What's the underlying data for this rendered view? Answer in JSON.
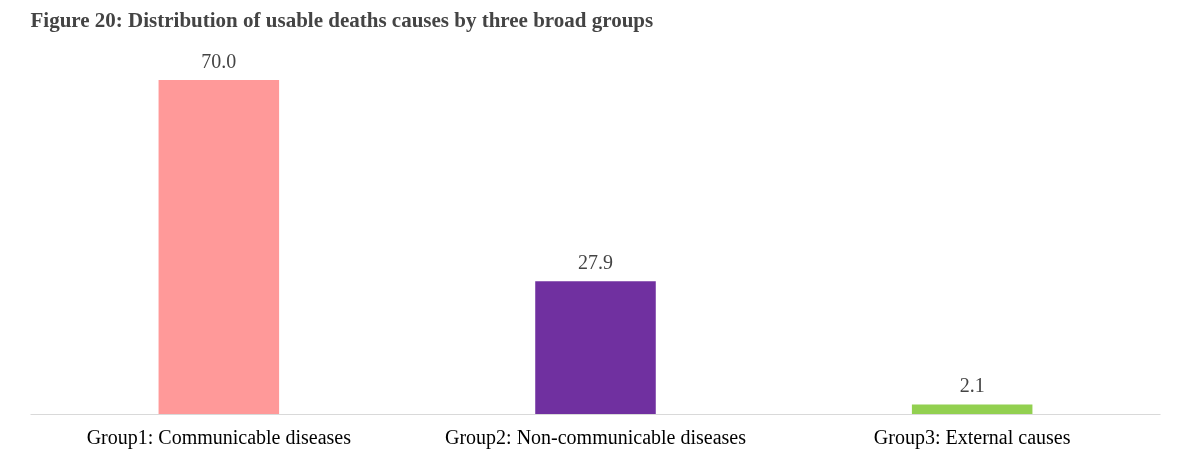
{
  "chart_data": {
    "type": "bar",
    "title": "Figure 20: Distribution of usable deaths causes by three broad groups",
    "categories": [
      "Group1: Communicable diseases",
      "Group2: Non-communicable diseases",
      "Group3: External causes"
    ],
    "values": [
      70.0,
      27.9,
      2.1
    ],
    "colors": [
      "#ff9999",
      "#7030a0",
      "#92d050"
    ],
    "value_labels": [
      "70.0",
      "27.9",
      "2.1"
    ],
    "grid": false
  }
}
